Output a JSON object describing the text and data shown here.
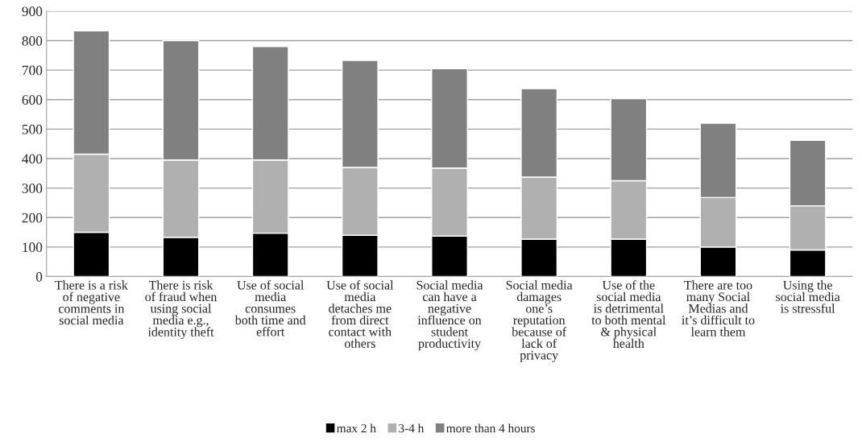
{
  "chart_data": {
    "type": "bar",
    "stacked": true,
    "categories": [
      "There is a risk\nof negative\ncomments in\nsocial media",
      "There is risk\nof fraud when\nusing social\nmedia e.g.,\nidentity theft",
      "Use of social\nmedia\nconsumes\nboth time and\neffort",
      "Use of social\nmedia\ndetaches me\nfrom direct\ncontact with\nothers",
      "Social media\ncan have a\nnegative\ninfluence on\nstudent\nproductivity",
      "Social media\ndamages\none’s\nreputation\nbecause of\nlack of\nprivacy",
      "Use of the\nsocial media\nis detrimental\nto both mental\n& physical\nhealth",
      "There are too\nmany Social\nMedias and\nit’s difficult to\nlearn them",
      "Using the\nsocial media\nis stressful"
    ],
    "series": [
      {
        "name": "max 2 h",
        "color": "#000000",
        "values": [
          150,
          133,
          147,
          140,
          137,
          127,
          127,
          100,
          90
        ]
      },
      {
        "name": "3-4 h",
        "color": "#b0b0b0",
        "values": [
          265,
          262,
          248,
          230,
          231,
          210,
          198,
          168,
          150
        ]
      },
      {
        "name": "more than 4 hours",
        "color": "#808080",
        "values": [
          418,
          405,
          385,
          363,
          337,
          300,
          278,
          252,
          222
        ]
      }
    ],
    "ylim": [
      0,
      900
    ],
    "yticks": [
      0,
      100,
      200,
      300,
      400,
      500,
      600,
      700,
      800,
      900
    ],
    "grid": "y",
    "legend": "bottom"
  }
}
